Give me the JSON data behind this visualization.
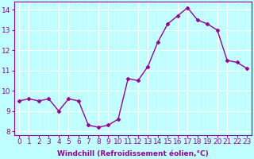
{
  "x": [
    0,
    1,
    2,
    3,
    4,
    5,
    6,
    7,
    8,
    9,
    10,
    11,
    12,
    13,
    14,
    15,
    16,
    17,
    18,
    19,
    20,
    21,
    22,
    23
  ],
  "y": [
    9.5,
    9.6,
    9.5,
    9.6,
    9.0,
    9.6,
    9.5,
    8.3,
    8.2,
    8.3,
    8.6,
    10.6,
    10.5,
    11.2,
    12.4,
    13.3,
    13.7,
    14.1,
    13.5,
    13.3,
    13.0,
    11.5,
    11.4,
    11.1
  ],
  "line_color": "#990099",
  "marker": "D",
  "markersize": 2.5,
  "linewidth": 1.0,
  "background_color": "#bfffff",
  "grid_color": "#ffffff",
  "xlabel": "Windchill (Refroidissement éolien,°C)",
  "ylim": [
    7.8,
    14.4
  ],
  "yticks": [
    8,
    9,
    10,
    11,
    12,
    13,
    14
  ],
  "xlabel_fontsize": 6.5,
  "tick_fontsize": 6.5,
  "color": "#990099"
}
